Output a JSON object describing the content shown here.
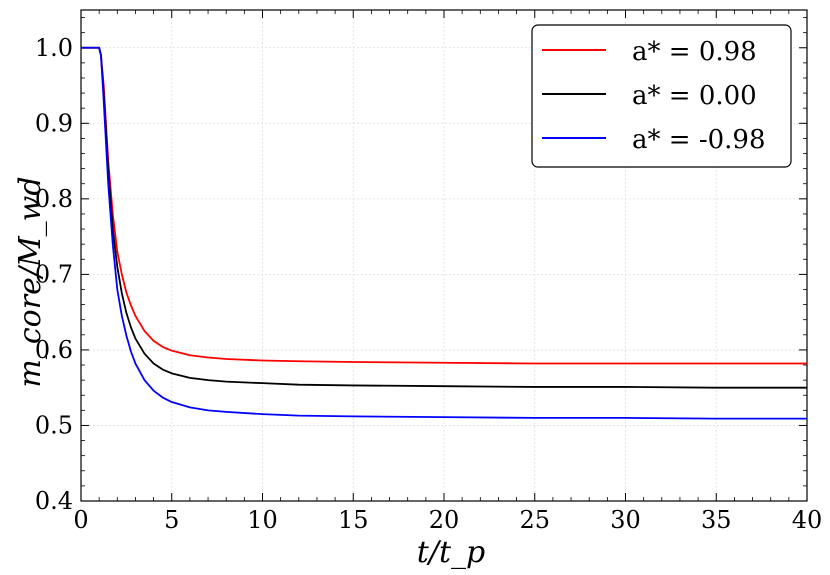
{
  "chart_data": {
    "type": "line",
    "xlabel": "t/t_p",
    "ylabel": "m_core/M_wd",
    "xlim": [
      0,
      40
    ],
    "ylim": [
      0.4,
      1.05
    ],
    "xticks": [
      0,
      5,
      10,
      15,
      20,
      25,
      30,
      35,
      40
    ],
    "yticks": [
      0.4,
      0.5,
      0.6,
      0.7,
      0.8,
      0.9,
      1.0
    ],
    "grid": true,
    "legend_position": "top-right",
    "series": [
      {
        "name": "a* = 0.98",
        "color": "#ff0000",
        "x": [
          0,
          1.0,
          1.1,
          1.25,
          1.5,
          1.75,
          2.0,
          2.25,
          2.5,
          2.75,
          3.0,
          3.5,
          4.0,
          4.5,
          5.0,
          6.0,
          7.0,
          8.0,
          10.0,
          12.0,
          15.0,
          20.0,
          25.0,
          30.0,
          35.0,
          40.0
        ],
        "y": [
          1.0,
          1.0,
          0.99,
          0.95,
          0.85,
          0.78,
          0.73,
          0.7,
          0.676,
          0.659,
          0.645,
          0.625,
          0.612,
          0.604,
          0.599,
          0.593,
          0.59,
          0.588,
          0.586,
          0.585,
          0.584,
          0.583,
          0.582,
          0.582,
          0.582,
          0.582
        ]
      },
      {
        "name": "a* = 0.00",
        "color": "#000000",
        "x": [
          0,
          1.0,
          1.1,
          1.25,
          1.5,
          1.75,
          2.0,
          2.25,
          2.5,
          2.75,
          3.0,
          3.5,
          4.0,
          4.5,
          5.0,
          6.0,
          7.0,
          8.0,
          10.0,
          12.0,
          15.0,
          20.0,
          25.0,
          30.0,
          35.0,
          40.0
        ],
        "y": [
          1.0,
          1.0,
          0.99,
          0.94,
          0.84,
          0.76,
          0.71,
          0.675,
          0.649,
          0.63,
          0.615,
          0.595,
          0.582,
          0.574,
          0.569,
          0.563,
          0.56,
          0.558,
          0.556,
          0.554,
          0.553,
          0.552,
          0.551,
          0.551,
          0.55,
          0.55
        ]
      },
      {
        "name": "a* = -0.98",
        "color": "#0000ff",
        "x": [
          0,
          1.0,
          1.1,
          1.25,
          1.5,
          1.75,
          2.0,
          2.25,
          2.5,
          2.75,
          3.0,
          3.5,
          4.0,
          4.5,
          5.0,
          6.0,
          7.0,
          8.0,
          10.0,
          12.0,
          15.0,
          20.0,
          25.0,
          30.0,
          35.0,
          40.0
        ],
        "y": [
          1.0,
          1.0,
          0.99,
          0.93,
          0.82,
          0.74,
          0.68,
          0.645,
          0.619,
          0.598,
          0.582,
          0.56,
          0.546,
          0.537,
          0.531,
          0.524,
          0.52,
          0.518,
          0.515,
          0.513,
          0.512,
          0.511,
          0.51,
          0.51,
          0.509,
          0.509
        ]
      }
    ]
  }
}
